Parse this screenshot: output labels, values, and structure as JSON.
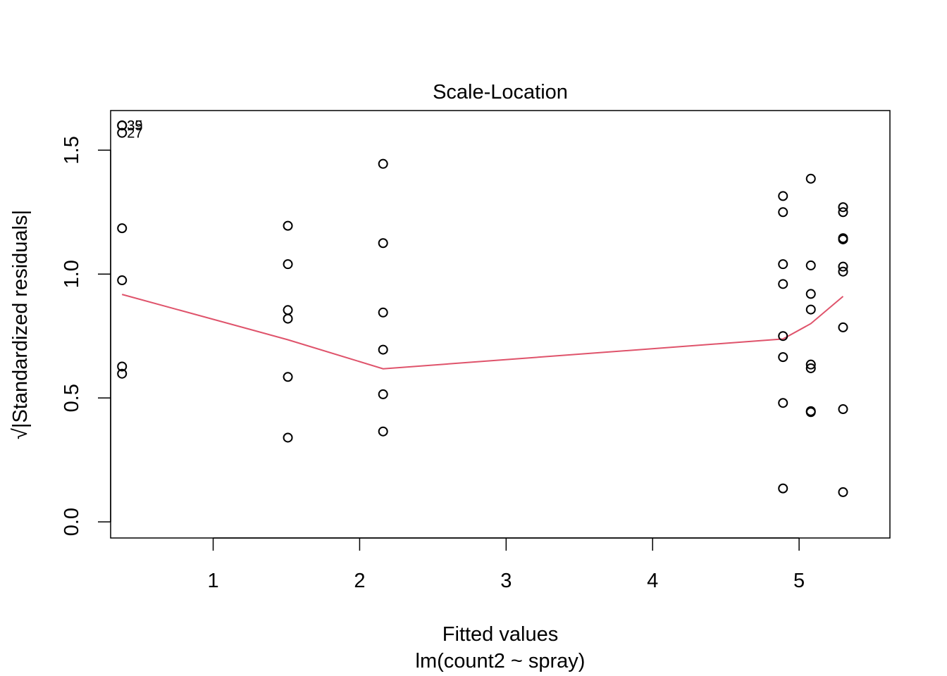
{
  "chart_data": {
    "type": "scatter",
    "title": "Scale-Location",
    "xlabel": "Fitted values",
    "xlabel_sub": "lm(count2 ~ spray)",
    "ylabel": "√|Standardized residuals|",
    "xlim": [
      0.3,
      5.62
    ],
    "ylim": [
      -0.065,
      1.66
    ],
    "x_ticks": [
      1,
      2,
      3,
      4,
      5
    ],
    "x_tick_labels": [
      "1",
      "2",
      "3",
      "4",
      "5"
    ],
    "y_ticks": [
      0.0,
      0.5,
      1.0,
      1.5
    ],
    "y_tick_labels": [
      "0.0",
      "0.5",
      "1.0",
      "1.5"
    ],
    "grid": false,
    "legend": "none",
    "colors": {
      "points": "#000000",
      "smooth_line": "#DF536B"
    },
    "series": [
      {
        "values": [
          [
            0.378,
            1.6
          ],
          [
            0.378,
            1.6
          ],
          [
            0.378,
            1.57
          ],
          [
            0.378,
            1.185
          ],
          [
            0.378,
            0.975
          ],
          [
            0.378,
            0.627
          ],
          [
            0.378,
            0.598
          ],
          [
            1.51,
            1.195
          ],
          [
            1.51,
            1.04
          ],
          [
            1.51,
            0.855
          ],
          [
            1.51,
            0.82
          ],
          [
            1.51,
            0.585
          ],
          [
            1.51,
            0.34
          ],
          [
            2.16,
            1.445
          ],
          [
            2.16,
            1.125
          ],
          [
            2.16,
            0.845
          ],
          [
            2.16,
            0.695
          ],
          [
            2.16,
            0.515
          ],
          [
            2.16,
            0.365
          ],
          [
            4.89,
            1.315
          ],
          [
            4.89,
            1.25
          ],
          [
            4.89,
            1.04
          ],
          [
            4.89,
            0.96
          ],
          [
            4.89,
            0.75
          ],
          [
            4.89,
            0.665
          ],
          [
            4.89,
            0.48
          ],
          [
            4.89,
            0.135
          ],
          [
            5.08,
            1.385
          ],
          [
            5.08,
            1.035
          ],
          [
            5.08,
            0.92
          ],
          [
            5.08,
            0.857
          ],
          [
            5.08,
            0.635
          ],
          [
            5.08,
            0.62
          ],
          [
            5.08,
            0.447
          ],
          [
            5.08,
            0.443
          ],
          [
            5.3,
            1.27
          ],
          [
            5.3,
            1.25
          ],
          [
            5.3,
            1.145
          ],
          [
            5.3,
            1.14
          ],
          [
            5.3,
            1.03
          ],
          [
            5.3,
            1.01
          ],
          [
            5.3,
            0.785
          ],
          [
            5.3,
            0.455
          ],
          [
            5.3,
            0.12
          ]
        ]
      }
    ],
    "smooth": [
      [
        0.378,
        0.918
      ],
      [
        1.51,
        0.735
      ],
      [
        2.16,
        0.618
      ],
      [
        4.89,
        0.738
      ],
      [
        5.08,
        0.8
      ],
      [
        5.3,
        0.91
      ]
    ],
    "point_labels": [
      {
        "x": 0.378,
        "y": 1.6,
        "text": "35"
      },
      {
        "x": 0.378,
        "y": 1.6,
        "text": "39"
      },
      {
        "x": 0.378,
        "y": 1.57,
        "text": "27"
      }
    ]
  }
}
